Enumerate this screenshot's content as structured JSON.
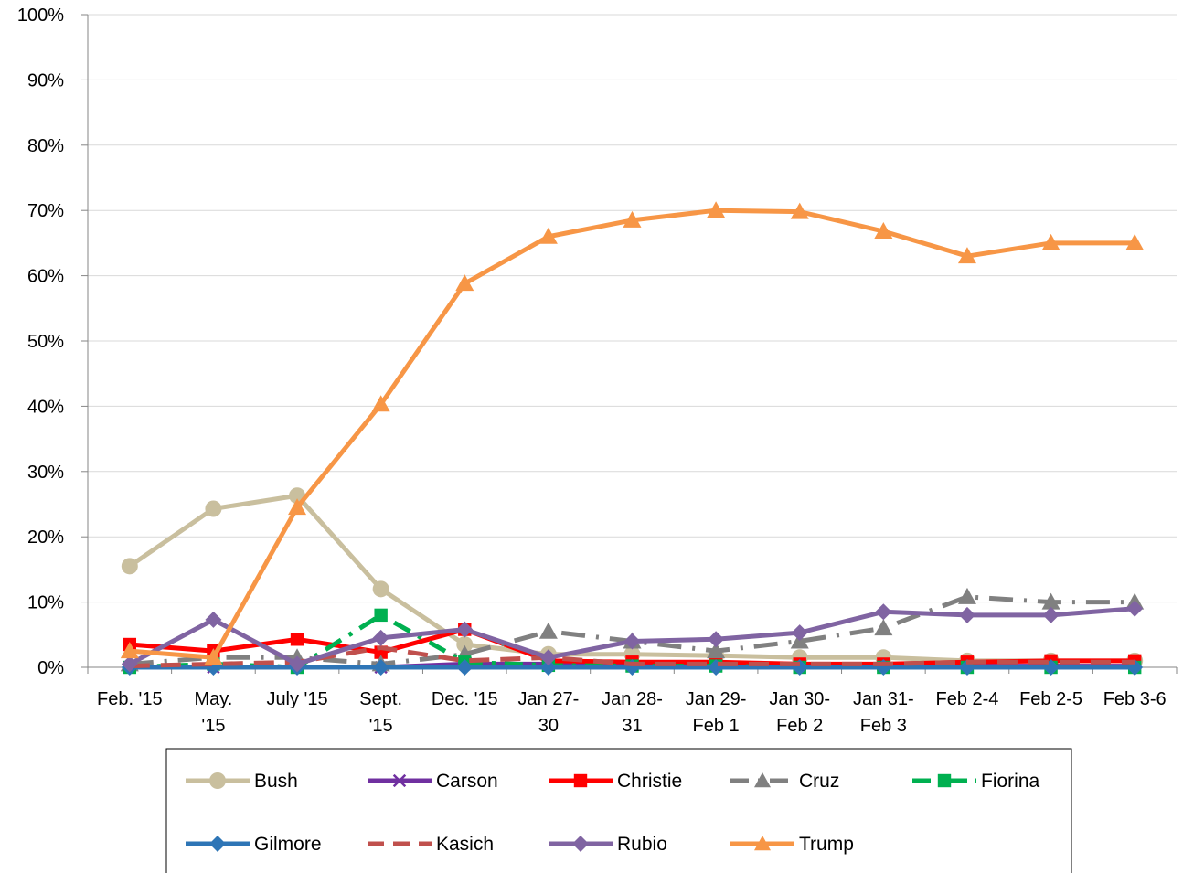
{
  "chart_data": {
    "type": "line",
    "title": "",
    "xlabel": "",
    "ylabel": "",
    "ylim": [
      0,
      100
    ],
    "yticks": [
      "0%",
      "10%",
      "20%",
      "30%",
      "40%",
      "50%",
      "60%",
      "70%",
      "80%",
      "90%",
      "100%"
    ],
    "grid": true,
    "legend_position": "bottom",
    "categories": [
      [
        "Feb. '15"
      ],
      [
        "May.",
        "'15"
      ],
      [
        "July '15"
      ],
      [
        "Sept.",
        "'15"
      ],
      [
        "Dec. '15"
      ],
      [
        "Jan 27-",
        "30"
      ],
      [
        "Jan 28-",
        "31"
      ],
      [
        "Jan 29-",
        "Feb 1"
      ],
      [
        "Jan 30-",
        "Feb 2"
      ],
      [
        "Jan 31-",
        "Feb 3"
      ],
      [
        "Feb 2-4"
      ],
      [
        "Feb 2-5"
      ],
      [
        "Feb 3-6"
      ]
    ],
    "series": [
      {
        "name": "Bush",
        "color": "#c9bf9e",
        "dash": "",
        "marker": "circle",
        "values": [
          15.5,
          24.3,
          26.3,
          12.0,
          3.5,
          2.0,
          2.0,
          1.8,
          1.5,
          1.5,
          1.0,
          1.0,
          1.0
        ]
      },
      {
        "name": "Carson",
        "color": "#7030a0",
        "dash": "",
        "marker": "x",
        "values": [
          0,
          0,
          0,
          0,
          0.5,
          0.5,
          0.3,
          0.3,
          0.3,
          0.2,
          0.2,
          0.2,
          0.2
        ]
      },
      {
        "name": "Christie",
        "color": "#ff0000",
        "dash": "",
        "marker": "square",
        "values": [
          3.5,
          2.5,
          4.3,
          2.3,
          5.8,
          1.0,
          0.8,
          0.8,
          0.5,
          0.5,
          0.8,
          1.0,
          1.0
        ]
      },
      {
        "name": "Cruz",
        "color": "#808080",
        "dash": "long-dot",
        "marker": "triangle",
        "values": [
          0.5,
          1.5,
          1.5,
          0.5,
          2.0,
          5.5,
          4.0,
          2.5,
          4.0,
          6.0,
          10.8,
          10.0,
          10.0
        ]
      },
      {
        "name": "Fiorina",
        "color": "#00b050",
        "dash": "dash-dot",
        "marker": "square",
        "values": [
          0,
          0.5,
          0,
          8.0,
          0.8,
          0.3,
          0.2,
          0.2,
          0,
          0,
          0,
          0,
          0
        ]
      },
      {
        "name": "Gilmore",
        "color": "#2e75b6",
        "dash": "",
        "marker": "diamond",
        "values": [
          0,
          0,
          0,
          0,
          0,
          0,
          0,
          0,
          0,
          0,
          0,
          0,
          0
        ]
      },
      {
        "name": "Kasich",
        "color": "#c0504d",
        "dash": "dash",
        "marker": "none",
        "values": [
          0.2,
          0.5,
          0.8,
          3.0,
          1.0,
          1.5,
          0.5,
          0.5,
          0.5,
          0.5,
          0.8,
          0.8,
          0.8
        ]
      },
      {
        "name": "Rubio",
        "color": "#8064a2",
        "dash": "",
        "marker": "diamond",
        "values": [
          0.5,
          7.3,
          0.5,
          4.5,
          5.8,
          1.5,
          4.0,
          4.3,
          5.3,
          8.5,
          8.0,
          8.0,
          9.0
        ]
      },
      {
        "name": "Trump",
        "color": "#f79646",
        "dash": "",
        "marker": "triangle",
        "values": [
          2.5,
          1.5,
          24.5,
          40.3,
          58.8,
          66.0,
          68.5,
          70.0,
          69.8,
          66.8,
          63.0,
          65.0,
          65.0
        ]
      }
    ]
  }
}
